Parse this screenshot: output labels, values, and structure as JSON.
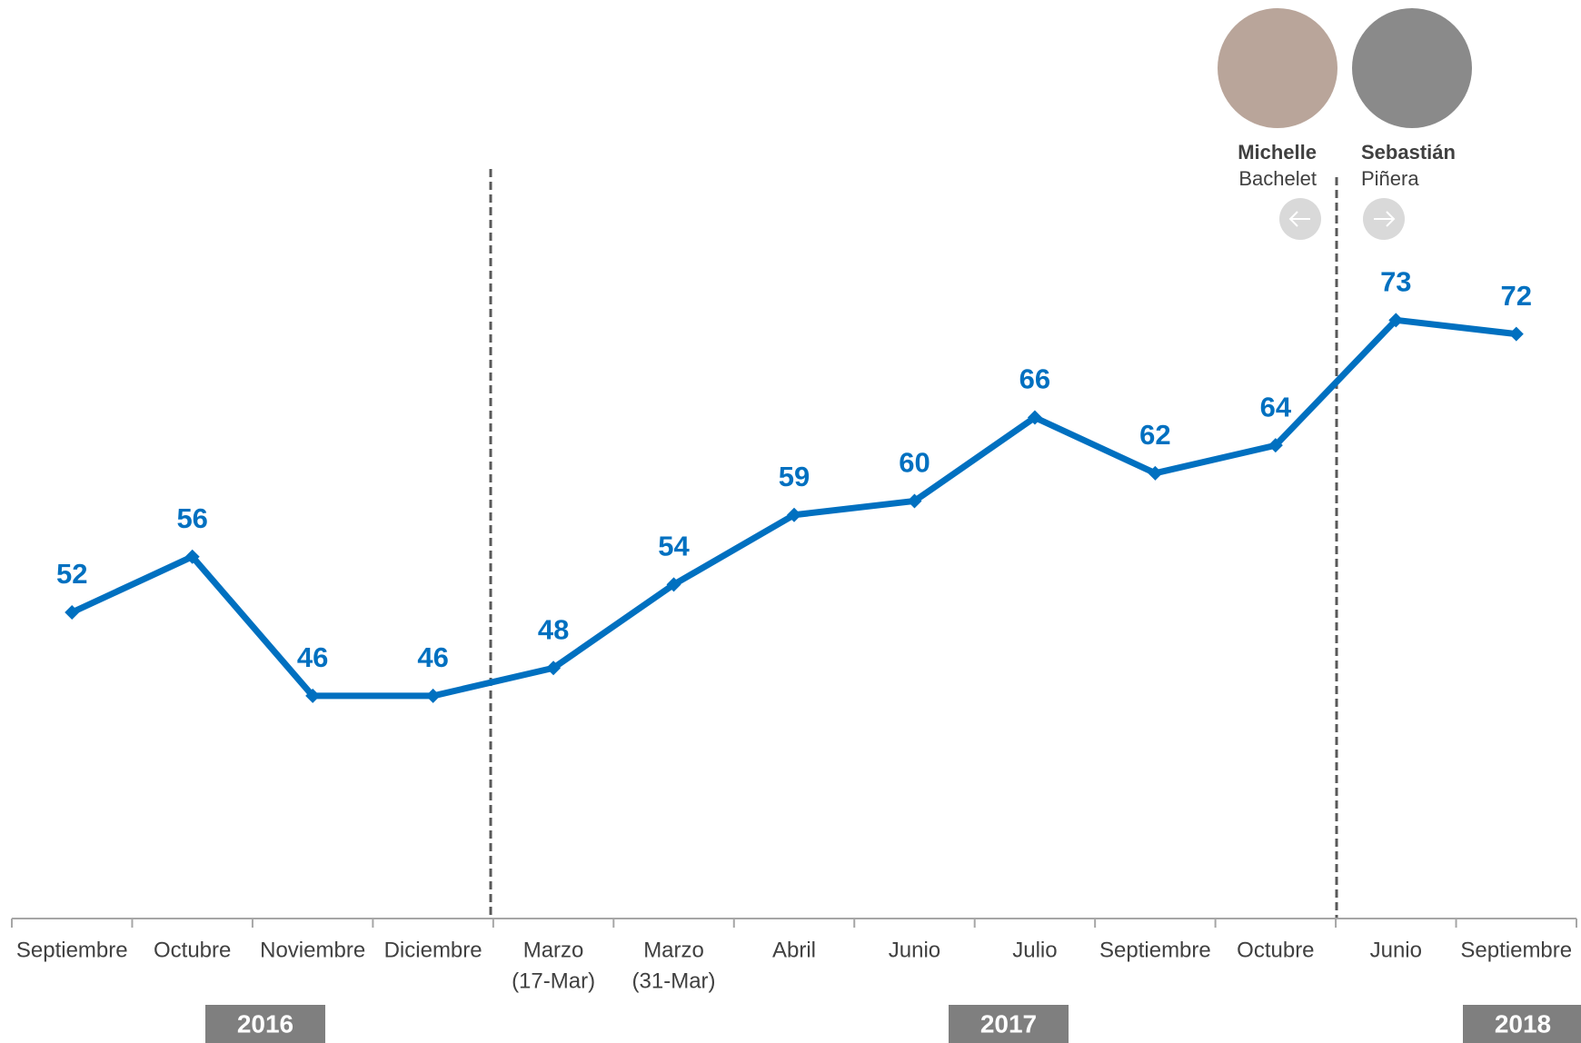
{
  "chart_data": {
    "type": "line",
    "categories": [
      [
        "Septiembre"
      ],
      [
        "Octubre"
      ],
      [
        "Noviembre"
      ],
      [
        "Diciembre"
      ],
      [
        "Marzo",
        "(17-Mar)"
      ],
      [
        "Marzo",
        "(31-Mar)"
      ],
      [
        "Abril"
      ],
      [
        "Junio"
      ],
      [
        "Julio"
      ],
      [
        "Septiembre"
      ],
      [
        "Octubre"
      ],
      [
        "Junio"
      ],
      [
        "Septiembre"
      ]
    ],
    "values": [
      52,
      56,
      46,
      46,
      48,
      54,
      59,
      60,
      66,
      62,
      64,
      73,
      72
    ],
    "color": "#0070c0",
    "ylim": [
      30,
      96
    ],
    "years": [
      "2016",
      "2017",
      "2018"
    ],
    "presidents": [
      {
        "first": "Michelle",
        "last": "Bachelet"
      },
      {
        "first": "Sebastián",
        "last": "Piñera"
      }
    ]
  }
}
